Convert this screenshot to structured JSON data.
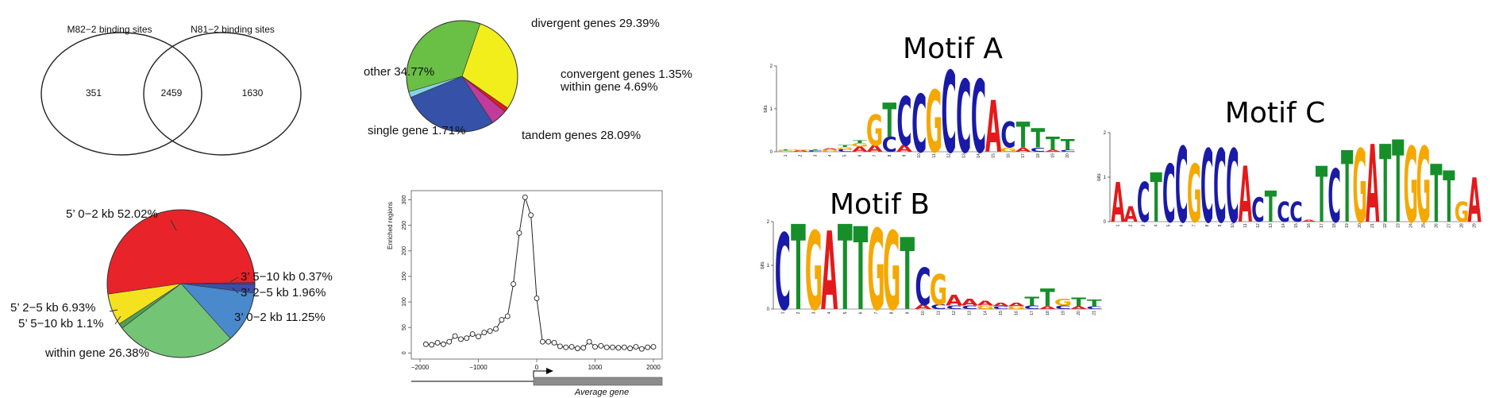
{
  "chart_data": [
    {
      "type": "venn",
      "sets": [
        "M82−2 binding sites",
        "N81−2 binding sites"
      ],
      "values": {
        "only_left": 351,
        "both": 2459,
        "only_right": 1630
      }
    },
    {
      "type": "pie",
      "slices": [
        {
          "label": "divergent genes 29.39%",
          "value": 29.39,
          "color": "#f2ee1c"
        },
        {
          "label": "convergent genes 1.35%",
          "value": 1.35,
          "color": "#e31a1c"
        },
        {
          "label": "within gene 4.69%",
          "value": 4.69,
          "color": "#c13b9c"
        },
        {
          "label": "tandem genes 28.09%",
          "value": 28.09,
          "color": "#3552a8"
        },
        {
          "label": "single gene 1.71%",
          "value": 1.71,
          "color": "#86d3e6"
        },
        {
          "label": "other 34.77%",
          "value": 34.77,
          "color": "#6abf45"
        }
      ]
    },
    {
      "type": "pie",
      "slices": [
        {
          "label": "3’ 5−10 kb 0.37%",
          "value": 0.37,
          "color": "#5a3fa0"
        },
        {
          "label": "3’ 2−5 kb 1.96%",
          "value": 1.96,
          "color": "#3c4fa8"
        },
        {
          "label": "3’ 0−2 kb 11.25%",
          "value": 11.25,
          "color": "#4a89cc"
        },
        {
          "label": "within gene 26.38%",
          "value": 26.38,
          "color": "#74c476"
        },
        {
          "label": "5’ 5−10 kb 1.1%",
          "value": 1.1,
          "color": "#4da352"
        },
        {
          "label": "5’ 2−5 kb 6.93%",
          "value": 6.93,
          "color": "#f5e21e"
        },
        {
          "label": "5’ 0−2 kb 52.02%",
          "value": 52.02,
          "color": "#e8242a"
        }
      ]
    },
    {
      "type": "line",
      "ylabel": "Enriched regions",
      "xlabel": "Average gene",
      "xlim": [
        -2000,
        2000
      ],
      "ylim": [
        0,
        310
      ],
      "xticks": [
        -2000,
        -1000,
        0,
        1000,
        2000
      ],
      "xtick_labels": [
        "−2000",
        "−1000",
        "0",
        "1000",
        "2000"
      ],
      "yticks": [
        0,
        50,
        100,
        150,
        200,
        250,
        300
      ],
      "x": [
        -1900,
        -1800,
        -1700,
        -1600,
        -1500,
        -1400,
        -1300,
        -1200,
        -1100,
        -1000,
        -900,
        -800,
        -700,
        -600,
        -500,
        -400,
        -300,
        -200,
        -100,
        0,
        100,
        200,
        300,
        400,
        500,
        600,
        700,
        800,
        900,
        1000,
        1100,
        1200,
        1300,
        1400,
        1500,
        1600,
        1700,
        1800,
        1900,
        2000
      ],
      "y": [
        17,
        16,
        20,
        17,
        22,
        33,
        27,
        29,
        37,
        32,
        40,
        43,
        47,
        65,
        72,
        135,
        235,
        305,
        270,
        107,
        22,
        22,
        20,
        13,
        11,
        12,
        9,
        10,
        22,
        12,
        14,
        11,
        11,
        10,
        11,
        9,
        12,
        8,
        11,
        12
      ]
    },
    {
      "type": "sequence-logo",
      "title": "Motif A",
      "ylabel": "bits",
      "yticks": [
        0,
        1,
        2
      ],
      "positions": [
        {
          "pos": "1",
          "letters": [
            {
              "l": "G",
              "h": 0.03
            },
            {
              "l": "T",
              "h": 0.02
            }
          ]
        },
        {
          "pos": "2",
          "letters": [
            {
              "l": "A",
              "h": 0.03
            },
            {
              "l": "G",
              "h": 0.02
            }
          ]
        },
        {
          "pos": "3",
          "letters": [
            {
              "l": "C",
              "h": 0.03
            },
            {
              "l": "T",
              "h": 0.02
            }
          ]
        },
        {
          "pos": "4",
          "letters": [
            {
              "l": "G",
              "h": 0.05
            },
            {
              "l": "A",
              "h": 0.04
            }
          ]
        },
        {
          "pos": "5",
          "letters": [
            {
              "l": "C",
              "h": 0.06
            },
            {
              "l": "G",
              "h": 0.05
            },
            {
              "l": "T",
              "h": 0.05
            }
          ]
        },
        {
          "pos": "6",
          "letters": [
            {
              "l": "A",
              "h": 0.12
            },
            {
              "l": "G",
              "h": 0.08
            },
            {
              "l": "T",
              "h": 0.06
            }
          ]
        },
        {
          "pos": "7",
          "letters": [
            {
              "l": "A",
              "h": 0.15
            },
            {
              "l": "G",
              "h": 0.72
            }
          ]
        },
        {
          "pos": "8",
          "letters": [
            {
              "l": "C",
              "h": 0.35
            },
            {
              "l": "T",
              "h": 0.8
            }
          ]
        },
        {
          "pos": "9",
          "letters": [
            {
              "l": "A",
              "h": 0.15
            },
            {
              "l": "C",
              "h": 1.15
            }
          ]
        },
        {
          "pos": "10",
          "letters": [
            {
              "l": "C",
              "h": 1.35
            }
          ]
        },
        {
          "pos": "11",
          "letters": [
            {
              "l": "G",
              "h": 1.45
            }
          ]
        },
        {
          "pos": "12",
          "letters": [
            {
              "l": "C",
              "h": 1.9
            }
          ]
        },
        {
          "pos": "13",
          "letters": [
            {
              "l": "C",
              "h": 1.7
            }
          ]
        },
        {
          "pos": "14",
          "letters": [
            {
              "l": "C",
              "h": 1.7
            }
          ]
        },
        {
          "pos": "15",
          "letters": [
            {
              "l": "A",
              "h": 1.2
            }
          ]
        },
        {
          "pos": "16",
          "letters": [
            {
              "l": "G",
              "h": 0.1
            },
            {
              "l": "C",
              "h": 0.6
            }
          ]
        },
        {
          "pos": "17",
          "letters": [
            {
              "l": "A",
              "h": 0.1
            },
            {
              "l": "T",
              "h": 0.6
            }
          ]
        },
        {
          "pos": "18",
          "letters": [
            {
              "l": "C",
              "h": 0.1
            },
            {
              "l": "T",
              "h": 0.45
            }
          ]
        },
        {
          "pos": "19",
          "letters": [
            {
              "l": "A",
              "h": 0.05
            },
            {
              "l": "T",
              "h": 0.3
            }
          ]
        },
        {
          "pos": "20",
          "letters": [
            {
              "l": "C",
              "h": 0.05
            },
            {
              "l": "T",
              "h": 0.25
            }
          ]
        }
      ]
    },
    {
      "type": "sequence-logo",
      "title": "Motif B",
      "ylabel": "bits",
      "yticks": [
        0,
        1,
        2
      ],
      "positions": [
        {
          "pos": "1",
          "letters": [
            {
              "l": "C",
              "h": 1.75
            }
          ]
        },
        {
          "pos": "2",
          "letters": [
            {
              "l": "T",
              "h": 1.95
            }
          ]
        },
        {
          "pos": "3",
          "letters": [
            {
              "l": "G",
              "h": 1.8
            }
          ]
        },
        {
          "pos": "4",
          "letters": [
            {
              "l": "A",
              "h": 1.8
            }
          ]
        },
        {
          "pos": "5",
          "letters": [
            {
              "l": "T",
              "h": 1.95
            }
          ]
        },
        {
          "pos": "6",
          "letters": [
            {
              "l": "T",
              "h": 1.9
            }
          ]
        },
        {
          "pos": "7",
          "letters": [
            {
              "l": "G",
              "h": 1.85
            }
          ]
        },
        {
          "pos": "8",
          "letters": [
            {
              "l": "G",
              "h": 1.8
            }
          ]
        },
        {
          "pos": "9",
          "letters": [
            {
              "l": "T",
              "h": 1.65
            }
          ]
        },
        {
          "pos": "10",
          "letters": [
            {
              "l": "A",
              "h": 0.1
            },
            {
              "l": "C",
              "h": 0.85
            }
          ]
        },
        {
          "pos": "11",
          "letters": [
            {
              "l": "C",
              "h": 0.1
            },
            {
              "l": "G",
              "h": 0.7
            }
          ]
        },
        {
          "pos": "12",
          "letters": [
            {
              "l": "C",
              "h": 0.08
            },
            {
              "l": "A",
              "h": 0.25
            }
          ]
        },
        {
          "pos": "13",
          "letters": [
            {
              "l": "C",
              "h": 0.08
            },
            {
              "l": "A",
              "h": 0.15
            }
          ]
        },
        {
          "pos": "14",
          "letters": [
            {
              "l": "G",
              "h": 0.08
            },
            {
              "l": "A",
              "h": 0.1
            }
          ]
        },
        {
          "pos": "15",
          "letters": [
            {
              "l": "C",
              "h": 0.06
            },
            {
              "l": "A",
              "h": 0.08
            }
          ]
        },
        {
          "pos": "16",
          "letters": [
            {
              "l": "G",
              "h": 0.06
            },
            {
              "l": "A",
              "h": 0.08
            }
          ]
        },
        {
          "pos": "17",
          "letters": [
            {
              "l": "C",
              "h": 0.08
            },
            {
              "l": "T",
              "h": 0.2
            }
          ]
        },
        {
          "pos": "18",
          "letters": [
            {
              "l": "A",
              "h": 0.06
            },
            {
              "l": "T",
              "h": 0.4
            }
          ]
        },
        {
          "pos": "19",
          "letters": [
            {
              "l": "C",
              "h": 0.08
            },
            {
              "l": "G",
              "h": 0.15
            }
          ]
        },
        {
          "pos": "20",
          "letters": [
            {
              "l": "A",
              "h": 0.06
            },
            {
              "l": "T",
              "h": 0.2
            }
          ]
        },
        {
          "pos": "21",
          "letters": [
            {
              "l": "C",
              "h": 0.06
            },
            {
              "l": "T",
              "h": 0.15
            }
          ]
        }
      ]
    },
    {
      "type": "sequence-logo",
      "title": "Motif C",
      "ylabel": "bits",
      "yticks": [
        0,
        1,
        2
      ],
      "positions": [
        {
          "pos": "1",
          "letters": [
            {
              "l": "A",
              "h": 0.9
            }
          ]
        },
        {
          "pos": "2",
          "letters": [
            {
              "l": "A",
              "h": 0.35
            }
          ]
        },
        {
          "pos": "3",
          "letters": [
            {
              "l": "C",
              "h": 0.9
            }
          ]
        },
        {
          "pos": "4",
          "letters": [
            {
              "l": "T",
              "h": 1.1
            }
          ]
        },
        {
          "pos": "5",
          "letters": [
            {
              "l": "C",
              "h": 1.3
            }
          ]
        },
        {
          "pos": "6",
          "letters": [
            {
              "l": "C",
              "h": 1.7
            }
          ]
        },
        {
          "pos": "7",
          "letters": [
            {
              "l": "G",
              "h": 1.3
            }
          ]
        },
        {
          "pos": "8",
          "letters": [
            {
              "l": "C",
              "h": 1.65
            }
          ]
        },
        {
          "pos": "9",
          "letters": [
            {
              "l": "C",
              "h": 1.65
            }
          ]
        },
        {
          "pos": "10",
          "letters": [
            {
              "l": "C",
              "h": 1.65
            }
          ]
        },
        {
          "pos": "11",
          "letters": [
            {
              "l": "A",
              "h": 1.25
            }
          ]
        },
        {
          "pos": "12",
          "letters": [
            {
              "l": "C",
              "h": 0.55
            }
          ]
        },
        {
          "pos": "13",
          "letters": [
            {
              "l": "T",
              "h": 0.7
            }
          ]
        },
        {
          "pos": "14",
          "letters": [
            {
              "l": "C",
              "h": 0.45
            }
          ]
        },
        {
          "pos": "15",
          "letters": [
            {
              "l": "C",
              "h": 0.45
            }
          ]
        },
        {
          "pos": "16",
          "letters": [
            {
              "l": "A",
              "h": 0.05
            }
          ]
        },
        {
          "pos": "17",
          "letters": [
            {
              "l": "T",
              "h": 1.25
            }
          ]
        },
        {
          "pos": "18",
          "letters": [
            {
              "l": "C",
              "h": 1.2
            }
          ]
        },
        {
          "pos": "19",
          "letters": [
            {
              "l": "T",
              "h": 1.6
            }
          ]
        },
        {
          "pos": "20",
          "letters": [
            {
              "l": "G",
              "h": 1.65
            }
          ]
        },
        {
          "pos": "21",
          "letters": [
            {
              "l": "A",
              "h": 1.75
            }
          ]
        },
        {
          "pos": "22",
          "letters": [
            {
              "l": "T",
              "h": 1.75
            }
          ]
        },
        {
          "pos": "23",
          "letters": [
            {
              "l": "T",
              "h": 1.85
            }
          ]
        },
        {
          "pos": "24",
          "letters": [
            {
              "l": "G",
              "h": 1.7
            }
          ]
        },
        {
          "pos": "25",
          "letters": [
            {
              "l": "G",
              "h": 1.7
            }
          ]
        },
        {
          "pos": "26",
          "letters": [
            {
              "l": "T",
              "h": 1.3
            }
          ]
        },
        {
          "pos": "27",
          "letters": [
            {
              "l": "T",
              "h": 1.15
            }
          ]
        },
        {
          "pos": "28",
          "letters": [
            {
              "l": "G",
              "h": 0.45
            }
          ]
        },
        {
          "pos": "29",
          "letters": [
            {
              "l": "A",
              "h": 1.0
            }
          ]
        }
      ]
    }
  ],
  "logo_colors": {
    "A": "#e31a1c",
    "C": "#1a1aa8",
    "G": "#f5a800",
    "T": "#168f2a"
  }
}
